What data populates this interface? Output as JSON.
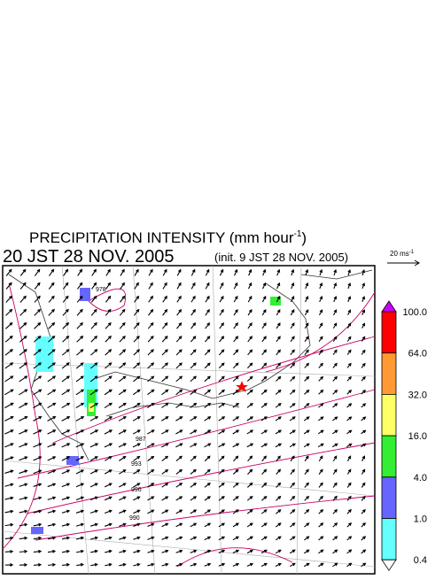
{
  "title": {
    "main": "PRECIPITATION INTENSITY (mm hour",
    "main_sup": "-1",
    "main_end": ")",
    "time": "20 JST 28 NOV. 2005",
    "init": "(init. 9 JST 28 NOV. 2005)"
  },
  "wind_legend": {
    "label": "20 ms",
    "sup": "-1"
  },
  "colorbar": {
    "labels": [
      "100.0",
      "64.0",
      "32.0",
      "16.0",
      "4.0",
      "1.0",
      "0.4"
    ],
    "colors": [
      "#cc00ff",
      "#ff0000",
      "#ff9933",
      "#ffff66",
      "#33ee33",
      "#6666ff",
      "#66ffff",
      "#ffffff"
    ]
  },
  "isobar_labels": [
    "978",
    "987",
    "993",
    "996",
    "990"
  ]
}
